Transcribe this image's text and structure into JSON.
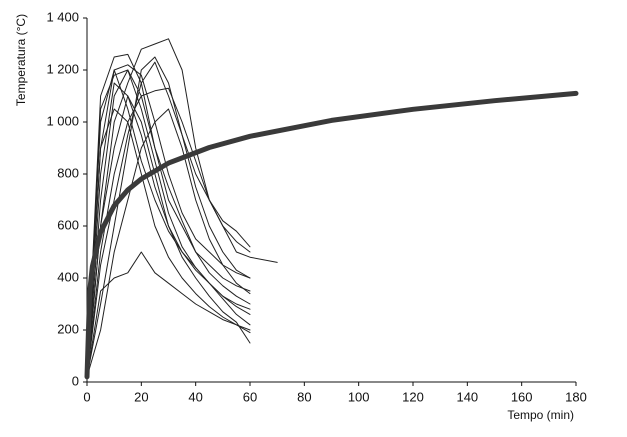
{
  "chart_data": {
    "type": "line",
    "y_label": "Temperatura (°C)",
    "x_label": "Tempo (min)",
    "xlim": [
      0,
      180
    ],
    "xticks": [
      0,
      20,
      40,
      60,
      80,
      100,
      120,
      140,
      160,
      180
    ],
    "ylim": [
      0,
      1400
    ],
    "yticks": [
      0,
      200,
      400,
      600,
      800,
      {
        "value": 1000,
        "label": "1 000"
      },
      {
        "value": 1200,
        "label": "1 200"
      },
      {
        "value": 1400,
        "label": "1 400"
      }
    ],
    "grid": false,
    "x": [
      0,
      5,
      10,
      15,
      20,
      25,
      30,
      35,
      40,
      45,
      50,
      55,
      60,
      70
    ],
    "series": [
      {
        "color": "#222222",
        "values": [
          20,
          1100,
          1250,
          1260,
          1150,
          900,
          700,
          600,
          500,
          450,
          400,
          370,
          350,
          null
        ]
      },
      {
        "color": "#222222",
        "values": [
          20,
          900,
          1200,
          1220,
          1180,
          1000,
          800,
          650,
          550,
          500,
          450,
          420,
          400,
          null
        ]
      },
      {
        "color": "#222222",
        "values": [
          20,
          600,
          1000,
          1150,
          1280,
          1300,
          1320,
          1200,
          900,
          700,
          600,
          500,
          480,
          460
        ]
      },
      {
        "color": "#222222",
        "values": [
          20,
          500,
          800,
          1000,
          1100,
          1120,
          1130,
          1000,
          850,
          700,
          600,
          540,
          500,
          null
        ]
      },
      {
        "color": "#222222",
        "values": [
          20,
          800,
          1150,
          1100,
          950,
          750,
          600,
          500,
          430,
          380,
          330,
          300,
          280,
          null
        ]
      },
      {
        "color": "#222222",
        "values": [
          20,
          300,
          600,
          900,
          1200,
          1250,
          1150,
          950,
          750,
          600,
          500,
          430,
          400,
          null
        ]
      },
      {
        "color": "#222222",
        "values": [
          20,
          1000,
          1200,
          1050,
          850,
          700,
          580,
          500,
          440,
          380,
          330,
          290,
          260,
          null
        ]
      },
      {
        "color": "#222222",
        "values": [
          20,
          350,
          400,
          420,
          500,
          420,
          380,
          340,
          300,
          270,
          240,
          220,
          200,
          null
        ]
      },
      {
        "color": "#222222",
        "values": [
          20,
          700,
          1100,
          1200,
          1050,
          850,
          650,
          520,
          440,
          380,
          320,
          260,
          220,
          null
        ]
      },
      {
        "color": "#222222",
        "values": [
          20,
          200,
          500,
          700,
          900,
          1000,
          1050,
          900,
          700,
          550,
          450,
          380,
          340,
          null
        ]
      },
      {
        "color": "#222222",
        "values": [
          20,
          900,
          1050,
          1000,
          800,
          600,
          480,
          400,
          340,
          290,
          250,
          220,
          190,
          null
        ]
      },
      {
        "color": "#222222",
        "values": [
          20,
          600,
          900,
          1100,
          1000,
          800,
          600,
          480,
          400,
          330,
          270,
          230,
          150,
          null
        ]
      },
      {
        "color": "#222222",
        "values": [
          20,
          1050,
          1180,
          1200,
          1100,
          900,
          750,
          620,
          500,
          420,
          370,
          330,
          300,
          null
        ]
      },
      {
        "color": "#222222",
        "values": [
          20,
          450,
          700,
          950,
          1150,
          1230,
          1100,
          950,
          800,
          700,
          620,
          580,
          520,
          null
        ]
      },
      {
        "color": "#3a3a3a",
        "width": 5,
        "x": [
          0,
          1,
          2,
          5,
          10,
          15,
          20,
          30,
          45,
          60,
          90,
          120,
          150,
          180
        ],
        "values": [
          20,
          349,
          445,
          576,
          678,
          739,
          781,
          842,
          902,
          945,
          1006,
          1049,
          1082,
          1110
        ]
      }
    ]
  }
}
